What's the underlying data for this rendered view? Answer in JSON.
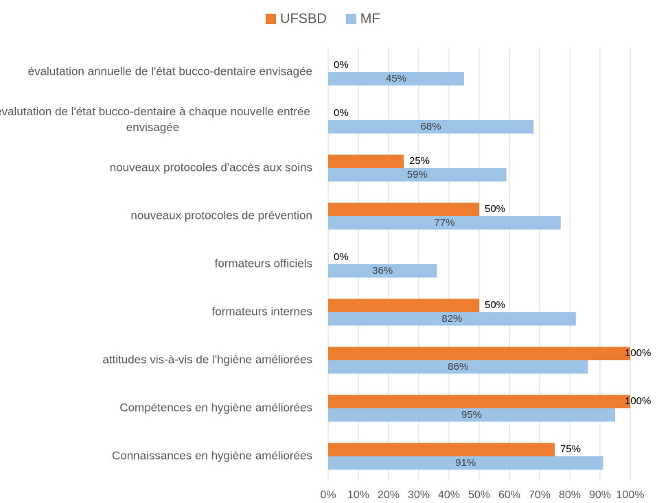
{
  "chart_data": {
    "type": "barh",
    "categories": [
      "évalutation annuelle de l'état bucco-dentaire envisagée",
      "évalutation de l'état bucco-dentaire à chaque nouvelle entrée envisagée",
      "nouveaux protocoles d'accès aux soins",
      "nouveaux protocoles de prévention",
      "formateurs officiels",
      "formateurs internes",
      "attitudes vis-à-vis de l'hgiène améliorées",
      "Compétences en hygiène améliorées",
      "Connaissances en hygiène améliorées"
    ],
    "series": [
      {
        "name": "UFSBD",
        "color": "#ed7d31",
        "values": [
          0,
          0,
          25,
          50,
          0,
          50,
          100,
          100,
          75
        ],
        "value_labels": [
          "0%",
          "0%",
          "25%",
          "50%",
          "0%",
          "50%",
          "100%",
          "100%",
          "75%"
        ]
      },
      {
        "name": "MF",
        "color": "#9dc3e6",
        "values": [
          45,
          68,
          59,
          77,
          36,
          82,
          86,
          95,
          91
        ],
        "value_labels": [
          "45%",
          "68%",
          "59%",
          "77%",
          "36%",
          "82%",
          "86%",
          "95%",
          "91%"
        ]
      }
    ],
    "xlim": [
      0,
      100
    ],
    "xticks": [
      {
        "value": 0,
        "label": "0%"
      },
      {
        "value": 10,
        "label": "10%"
      },
      {
        "value": 20,
        "label": "20%"
      },
      {
        "value": 30,
        "label": "30%"
      },
      {
        "value": 40,
        "label": "40%"
      },
      {
        "value": 50,
        "label": "50%"
      },
      {
        "value": 60,
        "label": "60%"
      },
      {
        "value": 70,
        "label": "70%"
      },
      {
        "value": 80,
        "label": "80%"
      },
      {
        "value": 90,
        "label": "90%"
      },
      {
        "value": 100,
        "label": "100%"
      }
    ],
    "grid": true,
    "legend": "top"
  }
}
